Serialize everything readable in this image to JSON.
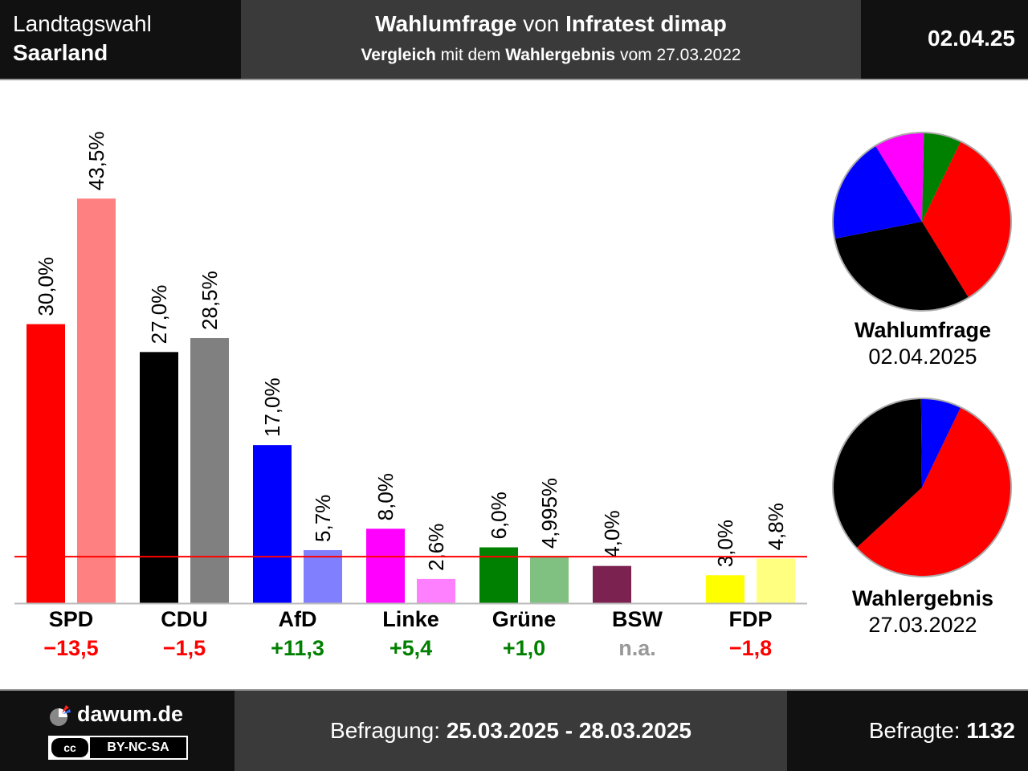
{
  "header": {
    "election_type": "Landtagswahl",
    "region": "Saarland",
    "title_bold1": "Wahlumfrage",
    "title_mid": " von ",
    "title_bold2": "Infratest dimap",
    "subtitle_bold1": "Vergleich",
    "subtitle_mid": " mit dem ",
    "subtitle_bold2": "Wahlergebnis",
    "subtitle_end": " vom 27.03.2022",
    "date_short": "02.04.25"
  },
  "chart_data": {
    "type": "bar",
    "categories": [
      "SPD",
      "CDU",
      "AfD",
      "Linke",
      "Grüne",
      "BSW",
      "FDP"
    ],
    "series": [
      {
        "name": "Wahlumfrage",
        "values": [
          30.0,
          27.0,
          17.0,
          8.0,
          6.0,
          4.0,
          3.0
        ],
        "labels": [
          "30,0%",
          "27,0%",
          "17,0%",
          "8,0%",
          "6,0%",
          "4,0%",
          "3,0%"
        ],
        "colors": [
          "#ff0000",
          "#000000",
          "#0000ff",
          "#ff00ff",
          "#008000",
          "#7b2250",
          "#ffff00"
        ]
      },
      {
        "name": "Wahlergebnis",
        "values": [
          43.5,
          28.5,
          5.7,
          2.6,
          4.995,
          null,
          4.8
        ],
        "labels": [
          "43,5%",
          "28,5%",
          "5,7%",
          "2,6%",
          "4,995%",
          "",
          "4,8%"
        ],
        "colors": [
          "#ff8080",
          "#808080",
          "#8080ff",
          "#ff80ff",
          "#80c080",
          "",
          "#ffff80"
        ]
      }
    ],
    "differences": [
      "−13,5",
      "−1,5",
      "+11,3",
      "+5,4",
      "+1,0",
      "n.a.",
      "−1,8"
    ],
    "difference_colors": [
      "#ff0000",
      "#ff0000",
      "#008000",
      "#008000",
      "#008000",
      "#999999",
      "#ff0000"
    ],
    "threshold": 5,
    "threshold_color": "#ff0000",
    "ylim": [
      0,
      45
    ]
  },
  "pies": [
    {
      "title": "Wahlumfrage",
      "date": "02.04.2025",
      "values": [
        30.0,
        27.0,
        17.0,
        8.0,
        6.0
      ],
      "colors": [
        "#ff0000",
        "#000000",
        "#0000ff",
        "#ff00ff",
        "#008000"
      ]
    },
    {
      "title": "Wahlergebnis",
      "date": "27.03.2022",
      "values": [
        43.5,
        28.5,
        5.7
      ],
      "colors": [
        "#ff0000",
        "#000000",
        "#0000ff"
      ]
    }
  ],
  "footer": {
    "site": "dawum.de",
    "license": "BY-NC-SA",
    "license_cc": "cc",
    "survey_label": "Befragung: ",
    "survey_period": "25.03.2025 - 28.03.2025",
    "respondents_label": "Befragte: ",
    "respondents": "1132"
  }
}
